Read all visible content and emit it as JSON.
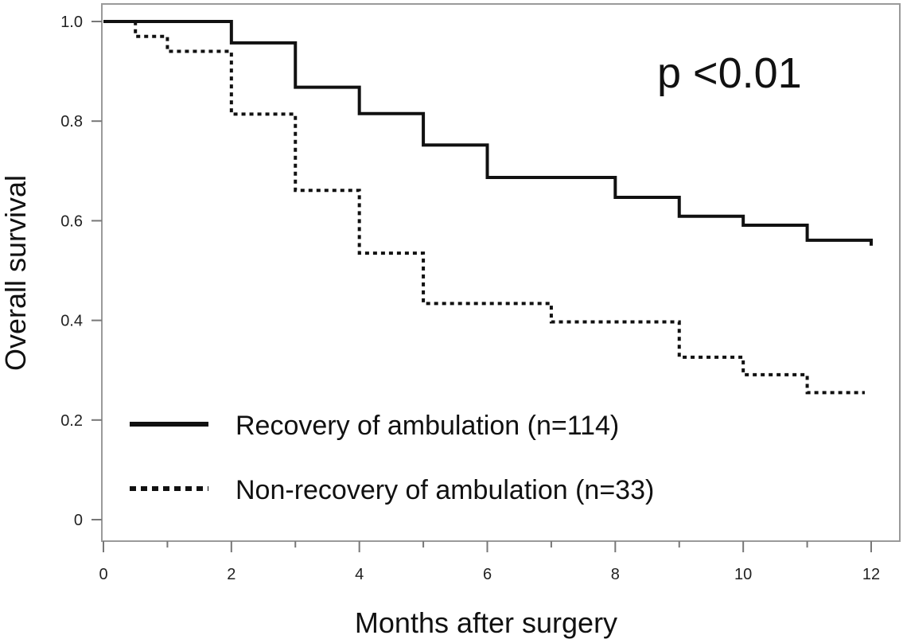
{
  "chart_data": {
    "type": "line",
    "step": true,
    "title": "",
    "xlabel": "Months after surgery",
    "ylabel": "Overall survival",
    "xlim": [
      0,
      12
    ],
    "ylim": [
      0,
      1.0
    ],
    "xticks": [
      0,
      2,
      4,
      6,
      8,
      10,
      12
    ],
    "xtick_labels": [
      "0",
      "2",
      "4",
      "6",
      "8",
      "10",
      "12"
    ],
    "yticks": [
      0,
      0.2,
      0.4,
      0.6,
      0.8,
      1.0
    ],
    "ytick_labels": [
      "0",
      "0.2",
      "0.4",
      "0.6",
      "0.8",
      "1.0"
    ],
    "annotation": "p <0.01",
    "legend_position": "bottom-left",
    "series": [
      {
        "name": "Recovery of ambulation (n=114)",
        "style": "solid",
        "color": "#111111",
        "x": [
          0,
          2,
          3,
          4,
          5,
          6,
          8,
          9,
          10,
          11,
          12
        ],
        "y": [
          1.0,
          0.957,
          0.868,
          0.815,
          0.752,
          0.687,
          0.647,
          0.609,
          0.591,
          0.561,
          0.55
        ]
      },
      {
        "name": "Non-recovery of ambulation (n=33)",
        "style": "dotted",
        "color": "#111111",
        "x": [
          0,
          0.5,
          1,
          2,
          3,
          4,
          5,
          7,
          9,
          10,
          11,
          11.9
        ],
        "y": [
          1.0,
          0.97,
          0.94,
          0.814,
          0.661,
          0.535,
          0.434,
          0.397,
          0.326,
          0.291,
          0.255,
          0.255
        ]
      }
    ]
  }
}
